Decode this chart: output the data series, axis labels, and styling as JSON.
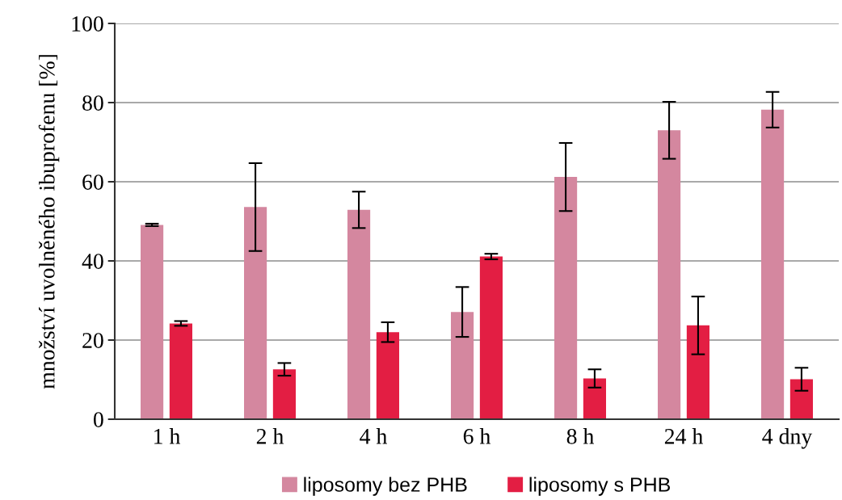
{
  "chart_data": {
    "type": "bar",
    "ylabel": "množství uvolněného ibuprofenu [%]",
    "categories": [
      "1 h",
      "2 h",
      "4 h",
      "6 h",
      "8 h",
      "24 h",
      "4 dny"
    ],
    "series": [
      {
        "name": "liposomy bez PHB",
        "color": "#d4879f",
        "values": [
          49.1,
          53.6,
          52.9,
          27.1,
          61.2,
          73.0,
          78.2
        ],
        "errors": [
          0.3,
          11.1,
          4.6,
          6.3,
          8.6,
          7.2,
          4.5
        ]
      },
      {
        "name": "liposomy s PHB",
        "color": "#e31e43",
        "values": [
          24.2,
          12.6,
          22.0,
          41.1,
          10.3,
          23.7,
          10.1
        ],
        "errors": [
          0.6,
          1.6,
          2.5,
          0.7,
          2.3,
          7.3,
          2.9
        ]
      }
    ],
    "ylim": [
      0,
      100
    ],
    "yticks": [
      0,
      20,
      40,
      60,
      80,
      100
    ],
    "grid": "y",
    "legend": "bottom"
  }
}
